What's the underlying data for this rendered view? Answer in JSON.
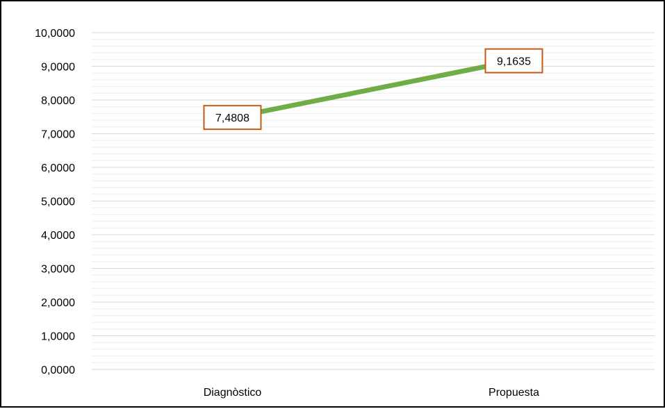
{
  "chart_data": {
    "type": "line",
    "title": "",
    "xlabel": "",
    "ylabel": "",
    "categories": [
      "Diagnòstico",
      "Propuesta"
    ],
    "series": [
      {
        "values": [
          7.4808,
          9.1635
        ]
      }
    ],
    "data_labels": [
      "7,4808",
      "9,1635"
    ],
    "ylim": [
      0,
      10
    ],
    "y_ticks": [
      0,
      1,
      2,
      3,
      4,
      5,
      6,
      7,
      8,
      9,
      10
    ],
    "y_tick_labels": [
      "0,0000",
      "1,0000",
      "2,0000",
      "3,0000",
      "4,0000",
      "5,0000",
      "6,0000",
      "7,0000",
      "8,0000",
      "9,0000",
      "10,0000"
    ],
    "grid": true,
    "minor_grid": true,
    "legend": "none",
    "colors": {
      "line": "#70ad47",
      "label_border": "#c55a11",
      "major_grid": "#d9d9d9",
      "minor_grid": "#eeeeee",
      "frame": "#000000"
    }
  }
}
